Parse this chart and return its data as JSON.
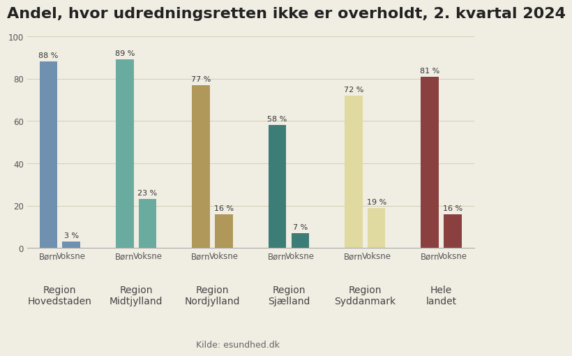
{
  "title": "Andel, hvor udredningsretten ikke er overholdt, 2. kvartal 2024",
  "source": "Kilde: esundhed.dk",
  "background_color": "#f0ede3",
  "ylim": [
    0,
    100
  ],
  "yticks": [
    0,
    20,
    40,
    60,
    80,
    100
  ],
  "regions": [
    {
      "label_line1": "Region",
      "label_line2": "Hovedstaden",
      "born": 88,
      "voksne": 3,
      "color": "#7090b0"
    },
    {
      "label_line1": "Region",
      "label_line2": "Midtjylland",
      "born": 89,
      "voksne": 23,
      "color": "#6aaba0"
    },
    {
      "label_line1": "Region",
      "label_line2": "Nordjylland",
      "born": 77,
      "voksne": 16,
      "color": "#b0985a"
    },
    {
      "label_line1": "Region",
      "label_line2": "Sjælland",
      "born": 58,
      "voksne": 7,
      "color": "#3d7d78"
    },
    {
      "label_line1": "Region",
      "label_line2": "Syddanmark",
      "born": 72,
      "voksne": 19,
      "color": "#e0daa0"
    },
    {
      "label_line1": "Hele",
      "label_line2": "landet",
      "born": 81,
      "voksne": 16,
      "color": "#8b4040"
    }
  ],
  "bar_width": 0.7,
  "title_fontsize": 16,
  "tick_fontsize": 8.5,
  "region_label_fontsize": 10,
  "value_fontsize": 8,
  "source_fontsize": 9
}
